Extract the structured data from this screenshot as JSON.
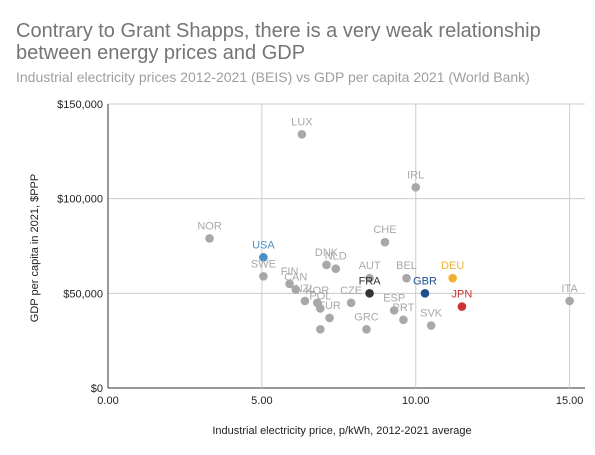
{
  "chart_data": {
    "type": "scatter",
    "title": "Contrary to Grant Shapps, there is a very weak relationship between energy prices and GDP",
    "subtitle": "Industrial electricity prices 2012-2021 (BEIS) vs GDP per capita 2021 (World Bank)",
    "xlabel": "Industrial electricity price, p/kWh, 2012-2021 average",
    "ylabel": "GDP per capita in 2021, $PPP",
    "xlim": [
      0,
      15.5
    ],
    "ylim": [
      0,
      150000
    ],
    "xticks": [
      "0.00",
      "5.00",
      "10.00",
      "15.00"
    ],
    "yticks": [
      "$0",
      "$50,000",
      "$100,000",
      "$150,000"
    ],
    "grid": true,
    "colors": {
      "default": "#a8a8a8",
      "USA": "#4a90c8",
      "FRA": "#333333",
      "GBR": "#1f4e8c",
      "DEU": "#f0b030",
      "JPN": "#cc3333"
    },
    "points": [
      {
        "label": "LUX",
        "x": 6.3,
        "y": 134000
      },
      {
        "label": "IRL",
        "x": 10.0,
        "y": 106000
      },
      {
        "label": "NOR",
        "x": 3.3,
        "y": 79000
      },
      {
        "label": "USA",
        "x": 5.05,
        "y": 69000
      },
      {
        "label": "SWE",
        "x": 5.05,
        "y": 59000
      },
      {
        "label": "CHE",
        "x": 9.0,
        "y": 77000
      },
      {
        "label": "DNK",
        "x": 7.1,
        "y": 65000
      },
      {
        "label": "NLD",
        "x": 7.4,
        "y": 63000
      },
      {
        "label": "AUT",
        "x": 8.5,
        "y": 58000
      },
      {
        "label": "BEL",
        "x": 9.7,
        "y": 58000
      },
      {
        "label": "DEU",
        "x": 11.2,
        "y": 58000
      },
      {
        "label": "FIN",
        "x": 5.9,
        "y": 55000
      },
      {
        "label": "CAN",
        "x": 6.1,
        "y": 52000
      },
      {
        "label": "NZL",
        "x": 6.4,
        "y": 46000
      },
      {
        "label": "KOR",
        "x": 6.8,
        "y": 45000
      },
      {
        "label": "FRA",
        "x": 8.5,
        "y": 50000
      },
      {
        "label": "GBR",
        "x": 10.3,
        "y": 50000
      },
      {
        "label": "CZE",
        "x": 7.9,
        "y": 45000
      },
      {
        "label": "POL",
        "x": 6.9,
        "y": 42000
      },
      {
        "label": "ESP",
        "x": 9.3,
        "y": 41000
      },
      {
        "label": "PRT",
        "x": 9.6,
        "y": 36000
      },
      {
        "label": "JPN",
        "x": 11.5,
        "y": 43000
      },
      {
        "label": "TUR",
        "x": 7.2,
        "y": 37000
      },
      {
        "label": "GRC",
        "x": 8.4,
        "y": 31000
      },
      {
        "label": "SVK",
        "x": 10.5,
        "y": 33000
      },
      {
        "label": "ITA",
        "x": 15.0,
        "y": 46000
      },
      {
        "label": "",
        "x": 6.9,
        "y": 31000
      }
    ]
  }
}
